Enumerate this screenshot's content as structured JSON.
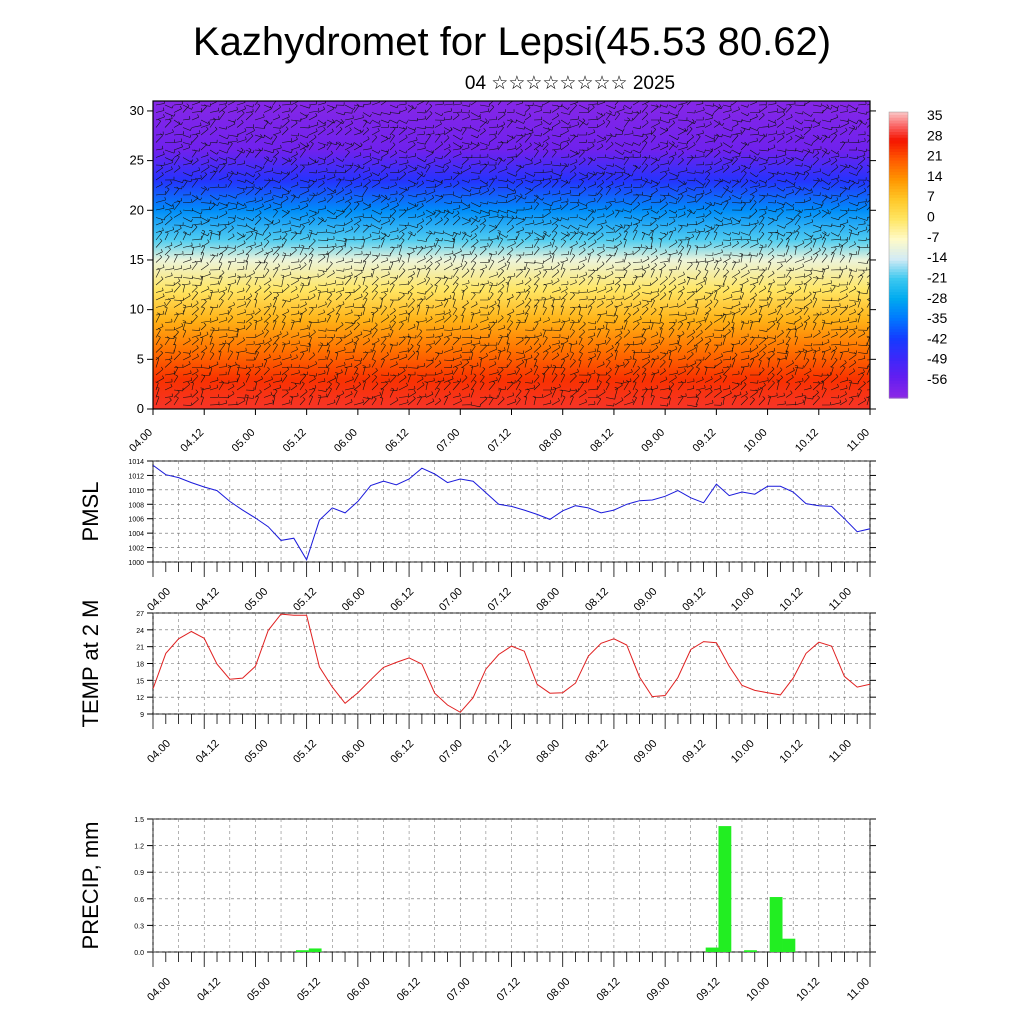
{
  "header": {
    "title": "Kazhydromet for Lepsi(45.53 80.62)",
    "subtitle": "04 ☆☆☆☆☆☆☆☆ 2025"
  },
  "colors": {
    "pressure_line": "#1a1adb",
    "temperature_line": "#e02020",
    "precip_bar": "#22ee22",
    "wind_barb": "#111111"
  },
  "chart_data": [
    {
      "id": "vertical-section",
      "type": "heatmap",
      "title": "",
      "xlabel": "",
      "ylabel": "",
      "ylim": [
        0,
        31
      ],
      "yticks": [
        0,
        5,
        10,
        15,
        20,
        25,
        30
      ],
      "xticks": [
        "04.00",
        "04.12",
        "05.00",
        "05.12",
        "06.00",
        "06.12",
        "07.00",
        "07.12",
        "08.00",
        "08.12",
        "09.00",
        "09.12",
        "10.00",
        "10.12",
        "11.00"
      ],
      "colorbar": {
        "labels": [
          "35",
          "28",
          "21",
          "14",
          "7",
          "0",
          "-7",
          "-14",
          "-21",
          "-28",
          "-35",
          "-42",
          "-49",
          "-56"
        ],
        "range": [
          -63,
          38
        ]
      },
      "temperature_by_level": [
        {
          "height": 0,
          "temp": 30
        },
        {
          "height": 3,
          "temp": 25
        },
        {
          "height": 6,
          "temp": 18
        },
        {
          "height": 9,
          "temp": 10
        },
        {
          "height": 12,
          "temp": 0
        },
        {
          "height": 15,
          "temp": -10
        },
        {
          "height": 17,
          "temp": -20
        },
        {
          "height": 20,
          "temp": -32
        },
        {
          "height": 23,
          "temp": -45
        },
        {
          "height": 26,
          "temp": -58
        },
        {
          "height": 31,
          "temp": -62
        }
      ],
      "overlay": "wind barbs"
    },
    {
      "id": "pmsl",
      "type": "line",
      "ylabel": "PMSL",
      "ylim": [
        1000,
        1014
      ],
      "yticks": [
        1000,
        1002,
        1004,
        1006,
        1008,
        1010,
        1012,
        1014
      ],
      "xticks": [
        "04.00",
        "04.12",
        "05.00",
        "05.12",
        "06.00",
        "06.12",
        "07.00",
        "07.12",
        "08.00",
        "08.12",
        "09.00",
        "09.12",
        "10.00",
        "10.12",
        "11.00"
      ],
      "series": [
        {
          "step_hours": 3,
          "values": [
            1013.4,
            1012.1,
            1011.7,
            1011.0,
            1010.4,
            1009.9,
            1008.4,
            1007.2,
            1006.1,
            1004.9,
            1003.0,
            1003.3,
            1000.3,
            1005.8,
            1007.5,
            1006.8,
            1008.4,
            1010.6,
            1011.2,
            1010.7,
            1011.5,
            1013.0,
            1012.2,
            1011.0,
            1011.5,
            1011.2,
            1009.6,
            1008.0,
            1007.7,
            1007.2,
            1006.6,
            1005.9,
            1007.1,
            1007.8,
            1007.5,
            1006.8,
            1007.2,
            1008.0,
            1008.5,
            1008.6,
            1009.1,
            1009.9,
            1008.9,
            1008.2,
            1010.8,
            1009.2,
            1009.7,
            1009.4,
            1010.5,
            1010.5,
            1009.7,
            1008.1,
            1007.8,
            1007.7,
            1006.0,
            1004.2,
            1004.6
          ]
        }
      ]
    },
    {
      "id": "temp2m",
      "type": "line",
      "ylabel": "TEMP at 2 M",
      "ylim": [
        9,
        27
      ],
      "yticks": [
        9,
        12,
        15,
        18,
        21,
        24,
        27
      ],
      "xticks": [
        "04.00",
        "04.12",
        "05.00",
        "05.12",
        "06.00",
        "06.12",
        "07.00",
        "07.12",
        "08.00",
        "08.12",
        "09.00",
        "09.12",
        "10.00",
        "10.12",
        "11.00"
      ],
      "series": [
        {
          "step_hours": 3,
          "values": [
            13.5,
            19.8,
            22.4,
            23.7,
            22.5,
            17.9,
            15.2,
            15.4,
            17.5,
            23.9,
            26.8,
            26.6,
            26.6,
            17.4,
            13.8,
            10.9,
            12.8,
            15.1,
            17.3,
            18.2,
            19.0,
            17.9,
            12.7,
            10.6,
            9.3,
            11.9,
            17.0,
            19.6,
            21.1,
            20.2,
            14.3,
            12.7,
            12.8,
            14.5,
            19.3,
            21.6,
            22.4,
            21.3,
            15.6,
            12.1,
            12.3,
            15.5,
            20.5,
            21.9,
            21.7,
            17.5,
            14.1,
            13.2,
            12.8,
            12.4,
            15.4,
            19.8,
            21.8,
            21.1,
            15.7,
            13.8,
            14.3,
            16.3
          ]
        }
      ]
    },
    {
      "id": "precip",
      "type": "bar",
      "ylabel": "PRECIP, mm",
      "ylim": [
        0,
        1.5
      ],
      "yticks": [
        "0.0",
        "0.3",
        "0.6",
        "0.9",
        "1.2",
        "1.5"
      ],
      "xticks": [
        "04.00",
        "04.12",
        "05.00",
        "05.12",
        "06.00",
        "06.12",
        "07.00",
        "07.12",
        "08.00",
        "08.12",
        "09.00",
        "09.12",
        "10.00",
        "10.12",
        "11.00"
      ],
      "bars": [
        {
          "hour": 35,
          "value": 0.02
        },
        {
          "hour": 38,
          "value": 0.04
        },
        {
          "hour": 131,
          "value": 0.05
        },
        {
          "hour": 134,
          "value": 1.42
        },
        {
          "hour": 140,
          "value": 0.02
        },
        {
          "hour": 146,
          "value": 0.62
        },
        {
          "hour": 149,
          "value": 0.15
        }
      ]
    }
  ]
}
